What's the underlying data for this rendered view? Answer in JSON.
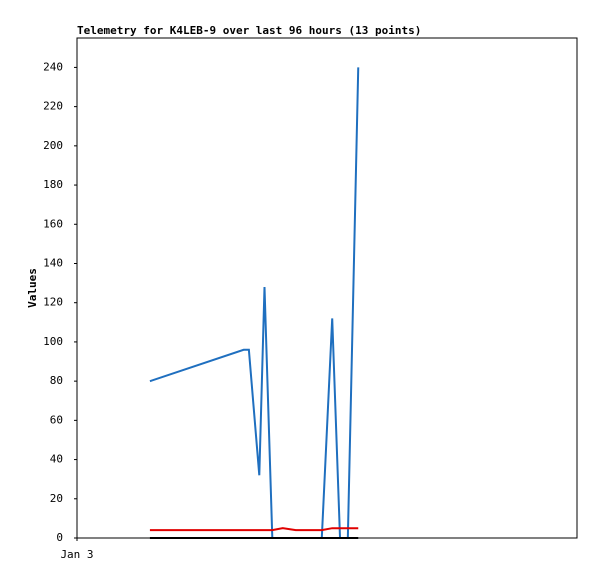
{
  "chart_data": {
    "type": "line",
    "title": "Telemetry for K4LEB-9 over last 96 hours (13 points)",
    "y_label": "Values",
    "x": [
      14,
      32,
      33,
      35,
      36,
      37.5,
      39.5,
      42,
      47,
      49,
      50.5,
      52,
      54
    ],
    "series": [
      {
        "color": "#1f6fbf",
        "values": [
          80,
          96,
          96,
          32,
          128,
          0,
          0,
          0,
          0,
          112,
          0,
          0,
          240
        ]
      },
      {
        "color": "#e00000",
        "values": [
          4,
          4,
          4,
          4,
          4,
          4,
          5,
          4,
          4,
          5,
          5,
          5,
          5
        ]
      },
      {
        "color": "#000000",
        "values": [
          0,
          0,
          0,
          0,
          0,
          0,
          0,
          0,
          0,
          0,
          0,
          0,
          0
        ]
      }
    ],
    "xlim": [
      0,
      96
    ],
    "xticks": [
      {
        "value": 0,
        "label": "Jan 3"
      }
    ],
    "ylim": [
      0,
      255
    ],
    "yticks": [
      0,
      20,
      40,
      60,
      80,
      100,
      120,
      140,
      160,
      180,
      200,
      220,
      240
    ],
    "grid": false
  }
}
